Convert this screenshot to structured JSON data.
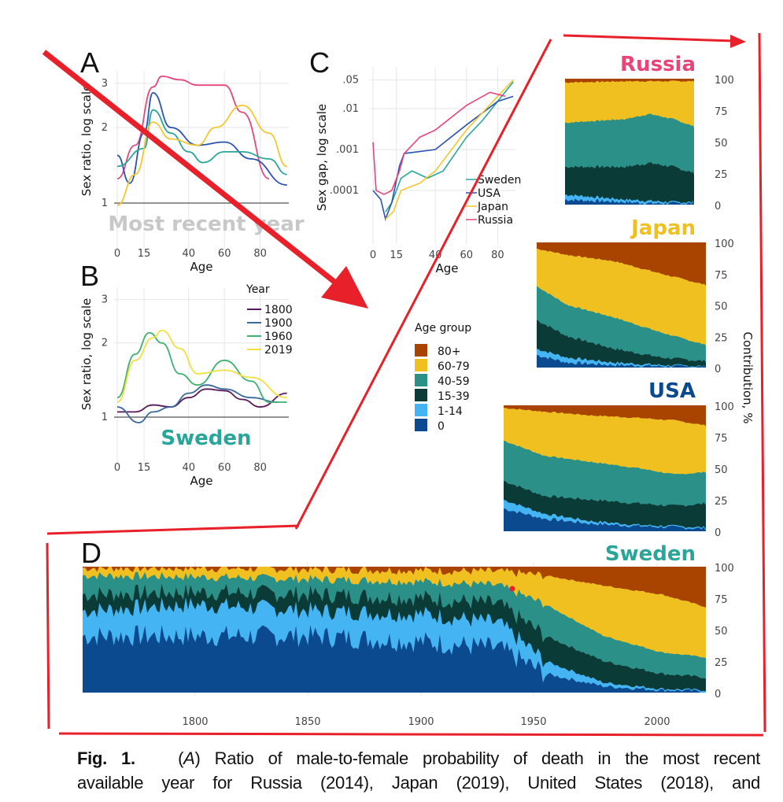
{
  "colors": {
    "russia": "#e8457a",
    "usa": "#2b54b0",
    "japan": "#f2c730",
    "sweden": "#2aa59a",
    "y1800": "#5a1a5a",
    "y1900": "#3a6a9a",
    "y1960": "#40b070",
    "y2019": "#f0e040",
    "a80": "#a84300",
    "a60": "#f0c020",
    "a40": "#2a9088",
    "a15": "#0b3b36",
    "a1": "#45b4f2",
    "a0": "#0b4a8e",
    "annot": "#e8202a"
  },
  "chart_data": [
    {
      "panel": "A",
      "type": "line",
      "title": "Most recent year",
      "xlabel": "Age",
      "ylabel": "Sex ratio, log scale",
      "xticks": [
        "0",
        "15",
        "40",
        "60",
        "80"
      ],
      "yticks": [
        "1",
        "2",
        "3"
      ],
      "yscale": "log",
      "series": [
        {
          "name": "Russia",
          "points": [
            [
              0,
              1.25
            ],
            [
              10,
              1.7
            ],
            [
              20,
              2.9
            ],
            [
              25,
              3.2
            ],
            [
              35,
              3.1
            ],
            [
              45,
              2.95
            ],
            [
              60,
              2.95
            ],
            [
              70,
              2.3
            ],
            [
              85,
              1.25
            ]
          ]
        },
        {
          "name": "USA",
          "points": [
            [
              0,
              1.55
            ],
            [
              7,
              1.2
            ],
            [
              15,
              1.9
            ],
            [
              20,
              2.75
            ],
            [
              30,
              2.0
            ],
            [
              45,
              1.7
            ],
            [
              60,
              1.75
            ],
            [
              75,
              1.5
            ],
            [
              95,
              1.18
            ]
          ]
        },
        {
          "name": "Sweden",
          "points": [
            [
              0,
              1.4
            ],
            [
              15,
              1.65
            ],
            [
              20,
              2.35
            ],
            [
              30,
              1.9
            ],
            [
              40,
              1.6
            ],
            [
              48,
              1.45
            ],
            [
              60,
              1.6
            ],
            [
              70,
              1.6
            ],
            [
              85,
              1.5
            ],
            [
              95,
              1.3
            ]
          ]
        },
        {
          "name": "Japan",
          "points": [
            [
              0,
              0.98
            ],
            [
              10,
              1.3
            ],
            [
              20,
              2.1
            ],
            [
              30,
              1.8
            ],
            [
              45,
              1.7
            ],
            [
              55,
              2.0
            ],
            [
              70,
              2.45
            ],
            [
              85,
              1.9
            ],
            [
              95,
              1.4
            ]
          ]
        }
      ]
    },
    {
      "panel": "B",
      "type": "line",
      "title": "Sweden",
      "xlabel": "Age",
      "ylabel": "Sex ratio, log scale",
      "legend_title": "Year",
      "xticks": [
        "0",
        "15",
        "40",
        "60",
        "80"
      ],
      "yticks": [
        "1",
        "2",
        "3"
      ],
      "yscale": "log",
      "series": [
        {
          "name": "1800",
          "points": [
            [
              0,
              1.05
            ],
            [
              10,
              1.05
            ],
            [
              20,
              1.12
            ],
            [
              30,
              1.1
            ],
            [
              40,
              1.2
            ],
            [
              50,
              1.3
            ],
            [
              60,
              1.28
            ],
            [
              70,
              1.18
            ],
            [
              80,
              1.1
            ],
            [
              95,
              1.25
            ]
          ]
        },
        {
          "name": "1900",
          "points": [
            [
              0,
              1.1
            ],
            [
              12,
              0.95
            ],
            [
              20,
              1.05
            ],
            [
              30,
              1.1
            ],
            [
              40,
              1.25
            ],
            [
              50,
              1.35
            ],
            [
              60,
              1.3
            ],
            [
              75,
              1.2
            ],
            [
              90,
              1.15
            ]
          ]
        },
        {
          "name": "1960",
          "points": [
            [
              0,
              1.2
            ],
            [
              10,
              1.8
            ],
            [
              18,
              2.2
            ],
            [
              25,
              2.0
            ],
            [
              35,
              1.5
            ],
            [
              45,
              1.35
            ],
            [
              60,
              1.7
            ],
            [
              75,
              1.4
            ],
            [
              85,
              1.15
            ],
            [
              95,
              1.15
            ]
          ]
        },
        {
          "name": "2019",
          "points": [
            [
              0,
              1.15
            ],
            [
              10,
              1.7
            ],
            [
              20,
              2.1
            ],
            [
              25,
              2.25
            ],
            [
              35,
              1.9
            ],
            [
              45,
              1.5
            ],
            [
              60,
              1.55
            ],
            [
              75,
              1.45
            ],
            [
              95,
              1.2
            ]
          ]
        }
      ]
    },
    {
      "panel": "C",
      "type": "line",
      "xlabel": "Age",
      "ylabel": "Sex gap, log scale",
      "xticks": [
        "0",
        "15",
        "40",
        "60",
        "80"
      ],
      "yticks": [
        ".0001",
        ".001",
        ".01",
        ".05"
      ],
      "yscale": "log",
      "series": [
        {
          "name": "Sweden",
          "points": [
            [
              8,
              3e-05
            ],
            [
              12,
              5e-05
            ],
            [
              18,
              0.0002
            ],
            [
              25,
              0.0003
            ],
            [
              35,
              0.0002
            ],
            [
              45,
              0.0003
            ],
            [
              60,
              0.002
            ],
            [
              70,
              0.005
            ],
            [
              80,
              0.015
            ],
            [
              90,
              0.045
            ]
          ]
        },
        {
          "name": "USA",
          "points": [
            [
              0,
              0.0001
            ],
            [
              5,
              6e-05
            ],
            [
              8,
              2e-05
            ],
            [
              12,
              5e-05
            ],
            [
              17,
              0.0004
            ],
            [
              20,
              0.0008
            ],
            [
              40,
              0.001
            ],
            [
              60,
              0.004
            ],
            [
              80,
              0.015
            ],
            [
              90,
              0.02
            ]
          ]
        },
        {
          "name": "Japan",
          "points": [
            [
              8,
              2e-05
            ],
            [
              13,
              3e-05
            ],
            [
              18,
              0.0001
            ],
            [
              30,
              0.00015
            ],
            [
              40,
              0.0003
            ],
            [
              60,
              0.003
            ],
            [
              80,
              0.02
            ],
            [
              90,
              0.05
            ]
          ]
        },
        {
          "name": "Russia",
          "points": [
            [
              0,
              0.0015
            ],
            [
              2,
              0.0001
            ],
            [
              7,
              8e-05
            ],
            [
              12,
              0.0001
            ],
            [
              17,
              0.0003
            ],
            [
              20,
              0.0008
            ],
            [
              30,
              0.002
            ],
            [
              40,
              0.003
            ],
            [
              60,
              0.012
            ],
            [
              75,
              0.025
            ],
            [
              85,
              0.02
            ]
          ]
        }
      ]
    },
    {
      "panel": "Russia",
      "type": "area",
      "title": "Russia",
      "ylabel": "Contribution, %",
      "yticks": [
        "0",
        "25",
        "50",
        "75",
        "100"
      ],
      "ylim": [
        0,
        100
      ],
      "age_groups": [
        "0",
        "1-14",
        "15-39",
        "40-59",
        "60-79",
        "80+"
      ],
      "cumulative": [
        [
          1959,
          [
            4,
            8,
            30,
            65,
            97
          ]
        ],
        [
          1985,
          [
            2,
            4,
            30,
            68,
            98
          ]
        ],
        [
          1995,
          [
            1,
            3,
            33,
            72,
            98
          ]
        ],
        [
          2005,
          [
            1,
            2,
            30,
            68,
            98
          ]
        ],
        [
          2014,
          [
            1,
            2,
            25,
            62,
            98
          ]
        ]
      ]
    },
    {
      "panel": "Japan",
      "type": "area",
      "title": "Japan",
      "yticks": [
        "0",
        "25",
        "50",
        "75",
        "100"
      ],
      "ylim": [
        0,
        100
      ],
      "cumulative": [
        [
          1947,
          [
            10,
            15,
            38,
            65,
            95
          ]
        ],
        [
          1960,
          [
            4,
            8,
            25,
            50,
            90
          ]
        ],
        [
          1980,
          [
            2,
            4,
            15,
            40,
            85
          ]
        ],
        [
          2000,
          [
            1,
            2,
            8,
            28,
            75
          ]
        ],
        [
          2019,
          [
            0.5,
            1,
            5,
            18,
            66
          ]
        ]
      ]
    },
    {
      "panel": "USA",
      "type": "area",
      "title": "USA",
      "yticks": [
        "0",
        "25",
        "50",
        "75",
        "100"
      ],
      "ylim": [
        0,
        100
      ],
      "cumulative": [
        [
          1933,
          [
            18,
            25,
            40,
            72,
            98
          ]
        ],
        [
          1950,
          [
            10,
            14,
            28,
            60,
            95
          ]
        ],
        [
          1970,
          [
            6,
            8,
            25,
            55,
            92
          ]
        ],
        [
          1990,
          [
            4,
            5,
            22,
            50,
            90
          ]
        ],
        [
          2005,
          [
            3,
            4,
            20,
            45,
            88
          ]
        ],
        [
          2018,
          [
            2,
            3,
            22,
            47,
            84
          ]
        ]
      ]
    },
    {
      "panel": "D",
      "type": "area",
      "title": "Sweden",
      "xticks": [
        "1800",
        "1850",
        "1900",
        "1950",
        "2000"
      ],
      "yticks": [
        "0",
        "25",
        "50",
        "75",
        "100"
      ],
      "ylim": [
        0,
        100
      ],
      "cumulative": [
        [
          1751,
          [
            45,
            65,
            78,
            93,
            99
          ]
        ],
        [
          1800,
          [
            45,
            70,
            80,
            92,
            99
          ]
        ],
        [
          1850,
          [
            45,
            65,
            78,
            90,
            98
          ]
        ],
        [
          1900,
          [
            40,
            62,
            75,
            88,
            97
          ]
        ],
        [
          1930,
          [
            35,
            55,
            70,
            85,
            96
          ]
        ],
        [
          1950,
          [
            15,
            25,
            45,
            70,
            93
          ]
        ],
        [
          1975,
          [
            5,
            8,
            25,
            45,
            85
          ]
        ],
        [
          2000,
          [
            2,
            3,
            15,
            32,
            78
          ]
        ],
        [
          2019,
          [
            1,
            2,
            12,
            28,
            68
          ]
        ]
      ]
    }
  ],
  "panel_labels": {
    "a": "A",
    "b": "B",
    "c": "C",
    "d": "D"
  },
  "legend": {
    "title": "Age group",
    "items": [
      "80+",
      "60-79",
      "40-59",
      "15-39",
      "1-14",
      "0"
    ]
  },
  "caption": {
    "label": "Fig. 1.",
    "panel": "A",
    "text1": ") Ratio of male-to-female probability of death in the most recent",
    "text2": "available year for Russia (2014), Japan (2019), United States (2018), and"
  }
}
